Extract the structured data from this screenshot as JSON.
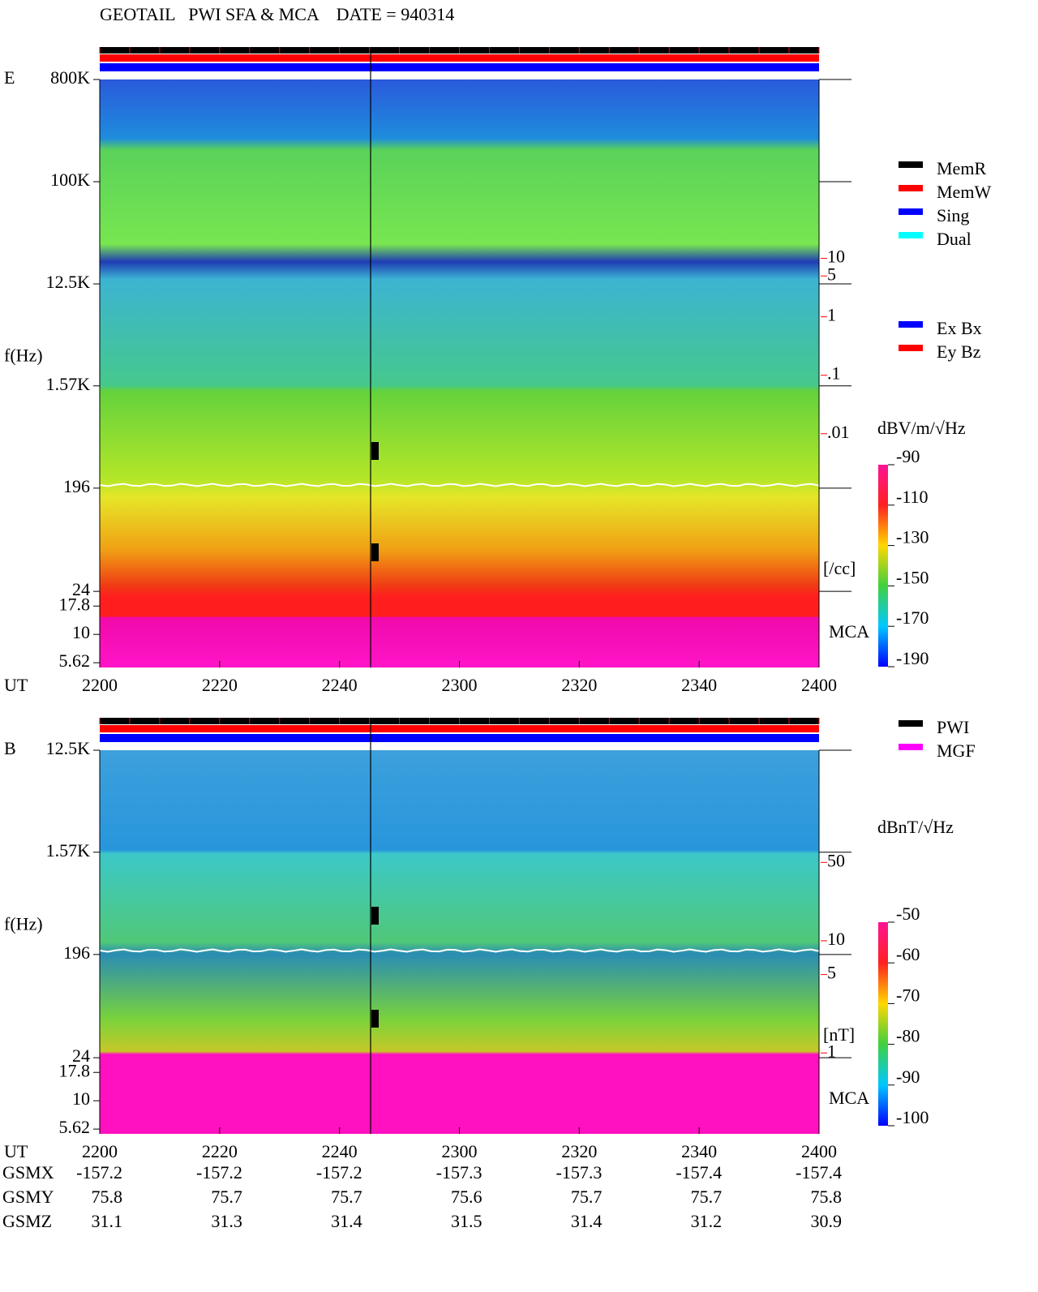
{
  "title": "GEOTAIL   PWI SFA & MCA    DATE = 940314",
  "chart_data": [
    {
      "type": "spectrogram",
      "panel_label": "E",
      "y_label": "f(Hz)",
      "y_log": true,
      "ylim": [
        5.1,
        800000
      ],
      "yticks": [
        {
          "value": 800000,
          "label": "800K"
        },
        {
          "value": 100000,
          "label": "100K"
        },
        {
          "value": 12500,
          "label": "12.5K"
        },
        {
          "value": 1570,
          "label": "1.57K"
        },
        196,
        24,
        17.8,
        10,
        5.62
      ],
      "x_label": "UT",
      "xticks": [
        "2200",
        "2220",
        "2240",
        "2300",
        "2320",
        "2340",
        "2400"
      ],
      "y2_log": true,
      "y2lim": [
        1e-06,
        11500
      ],
      "y2ticks": [
        10,
        5,
        1,
        {
          "value": 0.1,
          "label": ".1"
        },
        {
          "value": 0.01,
          "label": ".01"
        }
      ],
      "y2_label": "[/cc]",
      "y2_color": "#ff0000",
      "band_label": "MCA",
      "legend": [
        {
          "name": "MemR",
          "color": "#000000"
        },
        {
          "name": "MemW",
          "color": "#ff0000"
        },
        {
          "name": "Sing",
          "color": "#0000ff"
        },
        {
          "name": "Dual",
          "color": "#00ffff"
        }
      ],
      "legend2": [
        {
          "name": "Ex Bx",
          "color": "#0000ff"
        },
        {
          "name": "Ey Bz",
          "color": "#ff0000"
        }
      ],
      "colorbar": {
        "label": "dBV/m/√Hz",
        "lim": [
          -190,
          -90
        ],
        "ticks": [
          -90,
          -110,
          -130,
          -150,
          -170,
          -190
        ]
      }
    },
    {
      "type": "spectrogram",
      "panel_label": "B",
      "y_label": "f(Hz)",
      "y_log": true,
      "ylim": [
        5.1,
        12500
      ],
      "yticks": [
        {
          "value": 12500,
          "label": "12.5K"
        },
        {
          "value": 1570,
          "label": "1.57K"
        },
        196,
        24,
        17.8,
        10,
        5.62
      ],
      "x_label": "UT",
      "xticks": [
        "2200",
        "2220",
        "2240",
        "2300",
        "2320",
        "2340",
        "2400"
      ],
      "y2_log": true,
      "y2lim": [
        0.19,
        500
      ],
      "y2ticks": [
        50,
        10,
        5,
        1
      ],
      "y2_label": "[nT]",
      "y2_color": "#ff0000",
      "band_label": "MCA",
      "legend": [
        {
          "name": "PWI",
          "color": "#000000"
        },
        {
          "name": "MGF",
          "color": "#ff00ff"
        }
      ],
      "colorbar": {
        "label": "dBnT/√Hz",
        "lim": [
          -100,
          -50
        ],
        "ticks": [
          -50,
          -60,
          -70,
          -80,
          -90,
          -100
        ]
      }
    }
  ],
  "orbit": {
    "rows": [
      {
        "label": "GSMX",
        "values": [
          "-157.2",
          "-157.2",
          "-157.2",
          "-157.3",
          "-157.3",
          "-157.4",
          "-157.4"
        ]
      },
      {
        "label": "GSMY",
        "values": [
          "75.8",
          "75.7",
          "75.7",
          "75.6",
          "75.7",
          "75.7",
          "75.8"
        ]
      },
      {
        "label": "GSMZ",
        "values": [
          "31.1",
          "31.3",
          "31.4",
          "31.5",
          "31.4",
          "31.2",
          "30.9"
        ]
      }
    ]
  }
}
